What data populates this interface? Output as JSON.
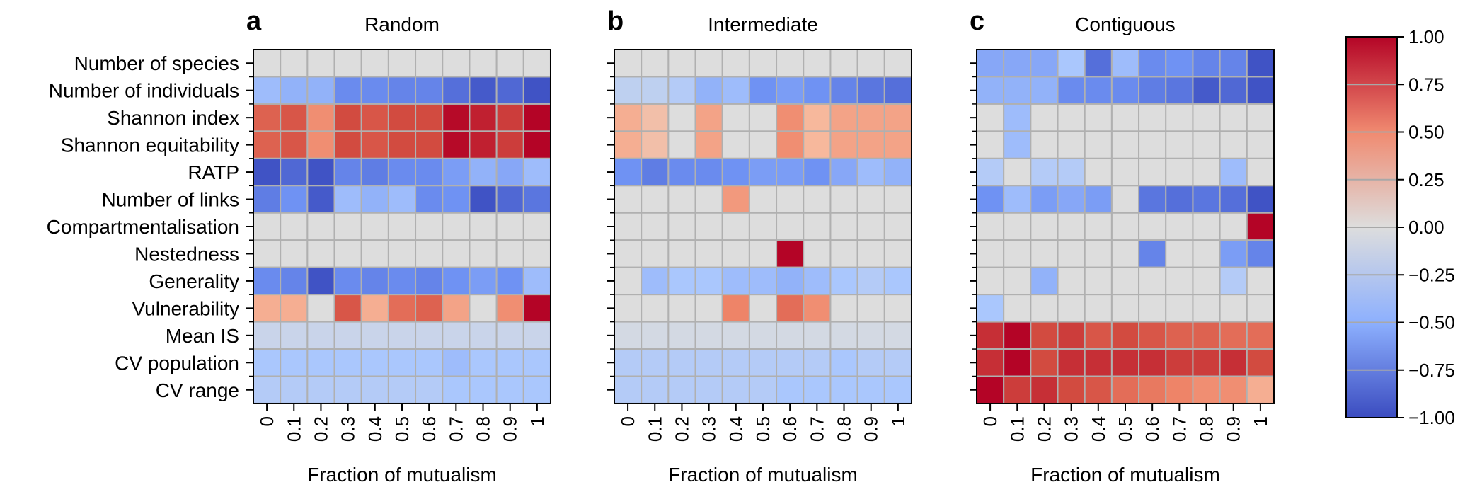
{
  "chart_data": {
    "type": "heatmap",
    "rows": [
      "Number of species",
      "Number of individuals",
      "Shannon index",
      "Shannon equitability",
      "RATP",
      "Number of links",
      "Compartmentalisation",
      "Nestedness",
      "Generality",
      "Vulnerability",
      "Mean IS",
      "CV population",
      "CV range"
    ],
    "columns": [
      "0",
      "0.1",
      "0.2",
      "0.3",
      "0.4",
      "0.5",
      "0.6",
      "0.7",
      "0.8",
      "0.9",
      "1"
    ],
    "xlabel": "Fraction of mutualism",
    "colorbar": {
      "range": [
        -1,
        1
      ],
      "ticks": [
        "1.00",
        "0.75",
        "0.50",
        "0.25",
        "0.00",
        "−0.25",
        "−0.50",
        "−0.75",
        "−1.00"
      ],
      "tick_values": [
        1,
        0.75,
        0.5,
        0.25,
        0,
        -0.25,
        -0.5,
        -0.75,
        -1
      ],
      "colors": {
        "low": "#3b4cc0",
        "mid": "#dddddd",
        "high": "#b40426"
      }
    },
    "panels": [
      {
        "letter": "a",
        "title": "Random",
        "show_row_labels": true,
        "values": [
          [
            0,
            0,
            0,
            0,
            0,
            0,
            0,
            0,
            0,
            0,
            0
          ],
          [
            -0.3,
            -0.35,
            -0.35,
            -0.55,
            -0.55,
            -0.6,
            -0.6,
            -0.75,
            -0.9,
            -0.8,
            -0.95
          ],
          [
            0.65,
            0.7,
            0.45,
            0.75,
            0.7,
            0.75,
            0.75,
            0.98,
            0.9,
            0.8,
            1.0
          ],
          [
            0.65,
            0.7,
            0.45,
            0.75,
            0.7,
            0.75,
            0.75,
            0.98,
            0.9,
            0.8,
            1.0
          ],
          [
            -0.95,
            -0.8,
            -0.95,
            -0.6,
            -0.65,
            -0.55,
            -0.55,
            -0.45,
            -0.35,
            -0.4,
            -0.3
          ],
          [
            -0.65,
            -0.5,
            -0.9,
            -0.3,
            -0.35,
            -0.3,
            -0.55,
            -0.5,
            -0.95,
            -0.8,
            -0.7
          ],
          [
            0,
            0,
            0,
            0,
            0,
            0,
            0,
            0,
            0,
            0,
            0
          ],
          [
            0,
            0,
            0,
            0,
            0,
            0,
            0,
            0,
            0,
            0,
            0
          ],
          [
            -0.55,
            -0.6,
            -0.95,
            -0.55,
            -0.6,
            -0.55,
            -0.6,
            -0.5,
            -0.45,
            -0.5,
            -0.3
          ],
          [
            0.3,
            0.3,
            0,
            0.7,
            0.3,
            0.6,
            0.65,
            0.35,
            0,
            0.45,
            1.0
          ],
          [
            -0.1,
            -0.1,
            -0.1,
            -0.1,
            -0.1,
            -0.1,
            -0.1,
            -0.1,
            -0.1,
            -0.1,
            -0.1
          ],
          [
            -0.25,
            -0.25,
            -0.25,
            -0.25,
            -0.25,
            -0.25,
            -0.25,
            -0.3,
            -0.25,
            -0.25,
            -0.25
          ],
          [
            -0.2,
            -0.2,
            -0.2,
            -0.2,
            -0.2,
            -0.2,
            -0.2,
            -0.25,
            -0.25,
            -0.25,
            -0.25
          ]
        ]
      },
      {
        "letter": "b",
        "title": "Intermediate",
        "show_row_labels": false,
        "values": [
          [
            0,
            0,
            0,
            0,
            0,
            0,
            0,
            0,
            0,
            0,
            0
          ],
          [
            -0.15,
            -0.15,
            -0.2,
            -0.35,
            -0.3,
            -0.5,
            -0.45,
            -0.5,
            -0.6,
            -0.7,
            -0.75
          ],
          [
            0.3,
            0.2,
            0,
            0.35,
            0,
            0,
            0.45,
            0.25,
            0.35,
            0.35,
            0.35
          ],
          [
            0.3,
            0.2,
            0,
            0.35,
            0,
            0,
            0.45,
            0.25,
            0.35,
            0.35,
            0.35
          ],
          [
            -0.5,
            -0.65,
            -0.55,
            -0.55,
            -0.5,
            -0.45,
            -0.45,
            -0.5,
            -0.4,
            -0.3,
            -0.35
          ],
          [
            0,
            0,
            0,
            0,
            0.4,
            0,
            0,
            0,
            0,
            0,
            0
          ],
          [
            0,
            0,
            0,
            0,
            0,
            0,
            0,
            0,
            0,
            0,
            0
          ],
          [
            0,
            0,
            0,
            0,
            0,
            0,
            1.0,
            0,
            0,
            0,
            0
          ],
          [
            0,
            -0.3,
            -0.25,
            -0.25,
            -0.3,
            -0.3,
            -0.35,
            -0.3,
            -0.25,
            -0.2,
            -0.25
          ],
          [
            0,
            0,
            0,
            0,
            0.5,
            0,
            0.6,
            0.45,
            0,
            0,
            0
          ],
          [
            -0.05,
            -0.05,
            -0.05,
            -0.05,
            -0.05,
            -0.05,
            -0.05,
            -0.05,
            -0.05,
            -0.05,
            -0.05
          ],
          [
            -0.2,
            -0.2,
            -0.2,
            -0.2,
            -0.2,
            -0.2,
            -0.2,
            -0.2,
            -0.25,
            -0.2,
            -0.2
          ],
          [
            -0.2,
            -0.2,
            -0.2,
            -0.2,
            -0.2,
            -0.2,
            -0.25,
            -0.25,
            -0.25,
            -0.25,
            -0.25
          ]
        ]
      },
      {
        "letter": "c",
        "title": "Contiguous",
        "show_row_labels": false,
        "values": [
          [
            -0.4,
            -0.4,
            -0.4,
            -0.25,
            -0.75,
            -0.3,
            -0.55,
            -0.5,
            -0.6,
            -0.6,
            -0.95
          ],
          [
            -0.35,
            -0.35,
            -0.35,
            -0.55,
            -0.55,
            -0.55,
            -0.65,
            -0.7,
            -0.9,
            -0.8,
            -0.95
          ],
          [
            0,
            -0.3,
            0,
            0,
            0,
            0,
            0,
            0,
            0,
            0,
            0
          ],
          [
            0,
            -0.3,
            0,
            0,
            0,
            0,
            0,
            0,
            0,
            0,
            0
          ],
          [
            -0.2,
            0,
            -0.2,
            -0.2,
            0,
            0,
            0,
            0,
            0,
            -0.3,
            0
          ],
          [
            -0.5,
            -0.3,
            -0.45,
            -0.4,
            -0.45,
            0,
            -0.7,
            -0.75,
            -0.7,
            -0.75,
            -0.95
          ],
          [
            0,
            0,
            0,
            0,
            0,
            0,
            0,
            0,
            0,
            0,
            1.0
          ],
          [
            0,
            0,
            0,
            0,
            0,
            0,
            -0.6,
            0,
            0,
            -0.45,
            -0.6
          ],
          [
            0,
            0,
            -0.35,
            0,
            0,
            0,
            0,
            0,
            0,
            -0.2,
            0
          ],
          [
            -0.25,
            0,
            0,
            0,
            0,
            0,
            0,
            0,
            0,
            0,
            0
          ],
          [
            0.85,
            1.0,
            0.75,
            0.8,
            0.7,
            0.75,
            0.7,
            0.65,
            0.65,
            0.6,
            0.6
          ],
          [
            0.85,
            1.0,
            0.75,
            0.85,
            0.85,
            0.85,
            0.85,
            0.8,
            0.8,
            0.85,
            0.75
          ],
          [
            1.0,
            0.8,
            0.85,
            0.75,
            0.7,
            0.6,
            0.55,
            0.5,
            0.45,
            0.45,
            0.3
          ]
        ]
      }
    ]
  }
}
